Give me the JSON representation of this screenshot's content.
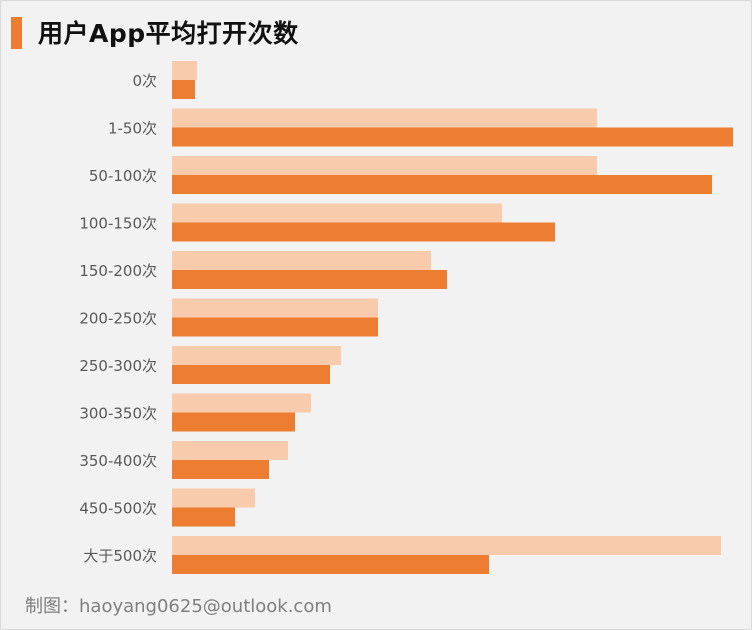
{
  "title": "用户App平均打开次数",
  "credit": "制图：haoyang0625@outlook.com",
  "colors": {
    "accent": "#ed7d31",
    "light": "#f8cbad",
    "background": "#f2f2f2",
    "text": "#595959"
  },
  "chart_data": {
    "type": "bar",
    "orientation": "horizontal",
    "title": "用户App平均打开次数",
    "categories": [
      "0次",
      "1-50次",
      "50-100次",
      "100-150次",
      "150-200次",
      "200-250次",
      "250-300次",
      "300-350次",
      "350-400次",
      "450-500次",
      "大于500次"
    ],
    "series": [
      {
        "color": "#f8cbad",
        "values": [
          25,
          425,
          425,
          330,
          259,
          206,
          169,
          139,
          116,
          83,
          549
        ]
      },
      {
        "color": "#ed7d31",
        "values": [
          23,
          561,
          540,
          383,
          275,
          206,
          158,
          123,
          97,
          63,
          317
        ]
      }
    ],
    "xlim": [
      0,
      561
    ],
    "grid": false,
    "legend": "none"
  }
}
